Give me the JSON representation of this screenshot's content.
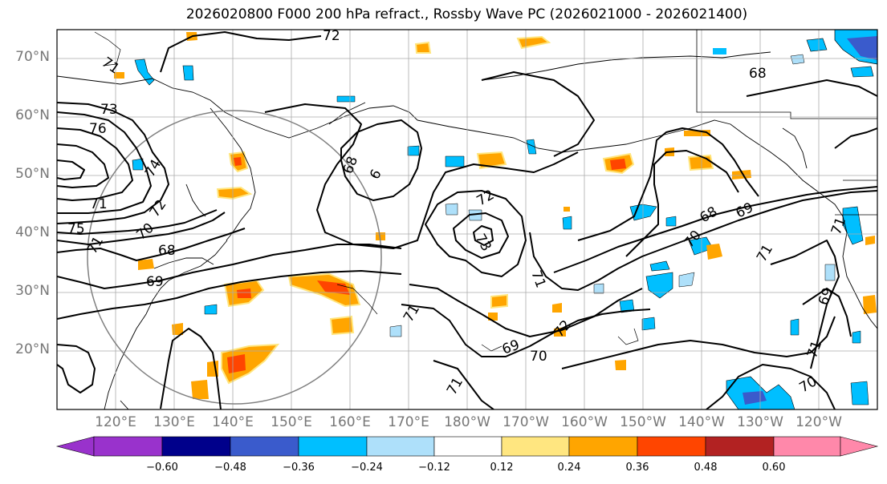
{
  "title": "2026020800 F000 200 hPa refract., Rossby Wave PC (2026021000 - 2026021400)",
  "latitude_labels": [
    "70°N",
    "60°N",
    "50°N",
    "40°N",
    "30°N",
    "20°N"
  ],
  "longitude_labels": [
    "120°E",
    "130°E",
    "140°E",
    "150°E",
    "160°E",
    "170°E",
    "180°W",
    "170°W",
    "160°W",
    "150°W",
    "140°W",
    "130°W",
    "120°W"
  ],
  "contour_labels": [
    "72",
    "71",
    "73",
    "76",
    "74",
    "71",
    "75",
    "72",
    "70",
    "71",
    "68",
    "69",
    "68",
    "6",
    "72",
    "73",
    "71",
    "71",
    "69",
    "70",
    "72",
    "68",
    "68",
    "69",
    "70",
    "71",
    "71",
    "69",
    "71",
    "70",
    "71"
  ],
  "colorbar": {
    "ticks": [
      "−0.60",
      "−0.48",
      "−0.36",
      "−0.24",
      "−0.12",
      "0.12",
      "0.24",
      "0.36",
      "0.48",
      "0.60"
    ],
    "colors": [
      "#9932cc",
      "#00008b",
      "#3a5bcc",
      "#00bfff",
      "#aee0fa",
      "#ffffff",
      "#ffe680",
      "#ffa500",
      "#ff4500",
      "#b22222",
      "#ff88aa"
    ]
  }
}
